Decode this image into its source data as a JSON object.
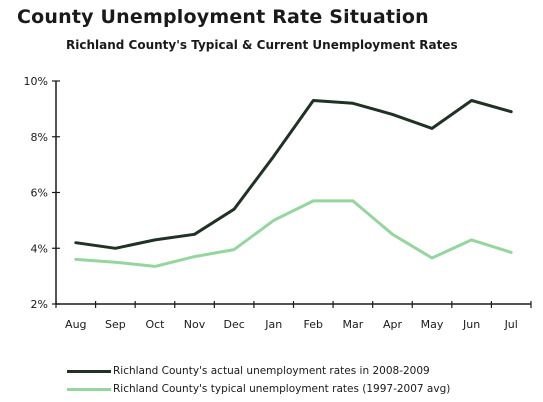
{
  "title": "County Unemployment Rate Situation",
  "subtitle": "Richland County's Typical & Current Unemployment Rates",
  "chart_data": {
    "type": "line",
    "categories": [
      "Aug",
      "Sep",
      "Oct",
      "Nov",
      "Dec",
      "Jan",
      "Feb",
      "Mar",
      "Apr",
      "May",
      "Jun",
      "Jul"
    ],
    "y_ticks": [
      "2%",
      "4%",
      "6%",
      "8%",
      "10%"
    ],
    "ylim": [
      2,
      10
    ],
    "ylabel": "",
    "xlabel": "",
    "grid": false,
    "legend_position": "bottom",
    "series": [
      {
        "name": "Richland County's actual unemployment rates in 2008-2009",
        "color": "#1f3325",
        "values": [
          4.2,
          4.0,
          4.3,
          4.5,
          5.4,
          7.3,
          9.3,
          9.2,
          8.8,
          8.3,
          9.3,
          8.9
        ]
      },
      {
        "name": "Richland County's typical unemployment rates (1997-2007 avg)",
        "color": "#94d69e",
        "values": [
          3.6,
          3.5,
          3.35,
          3.7,
          3.95,
          5.0,
          5.7,
          5.7,
          4.5,
          3.65,
          4.3,
          3.85
        ]
      }
    ]
  }
}
